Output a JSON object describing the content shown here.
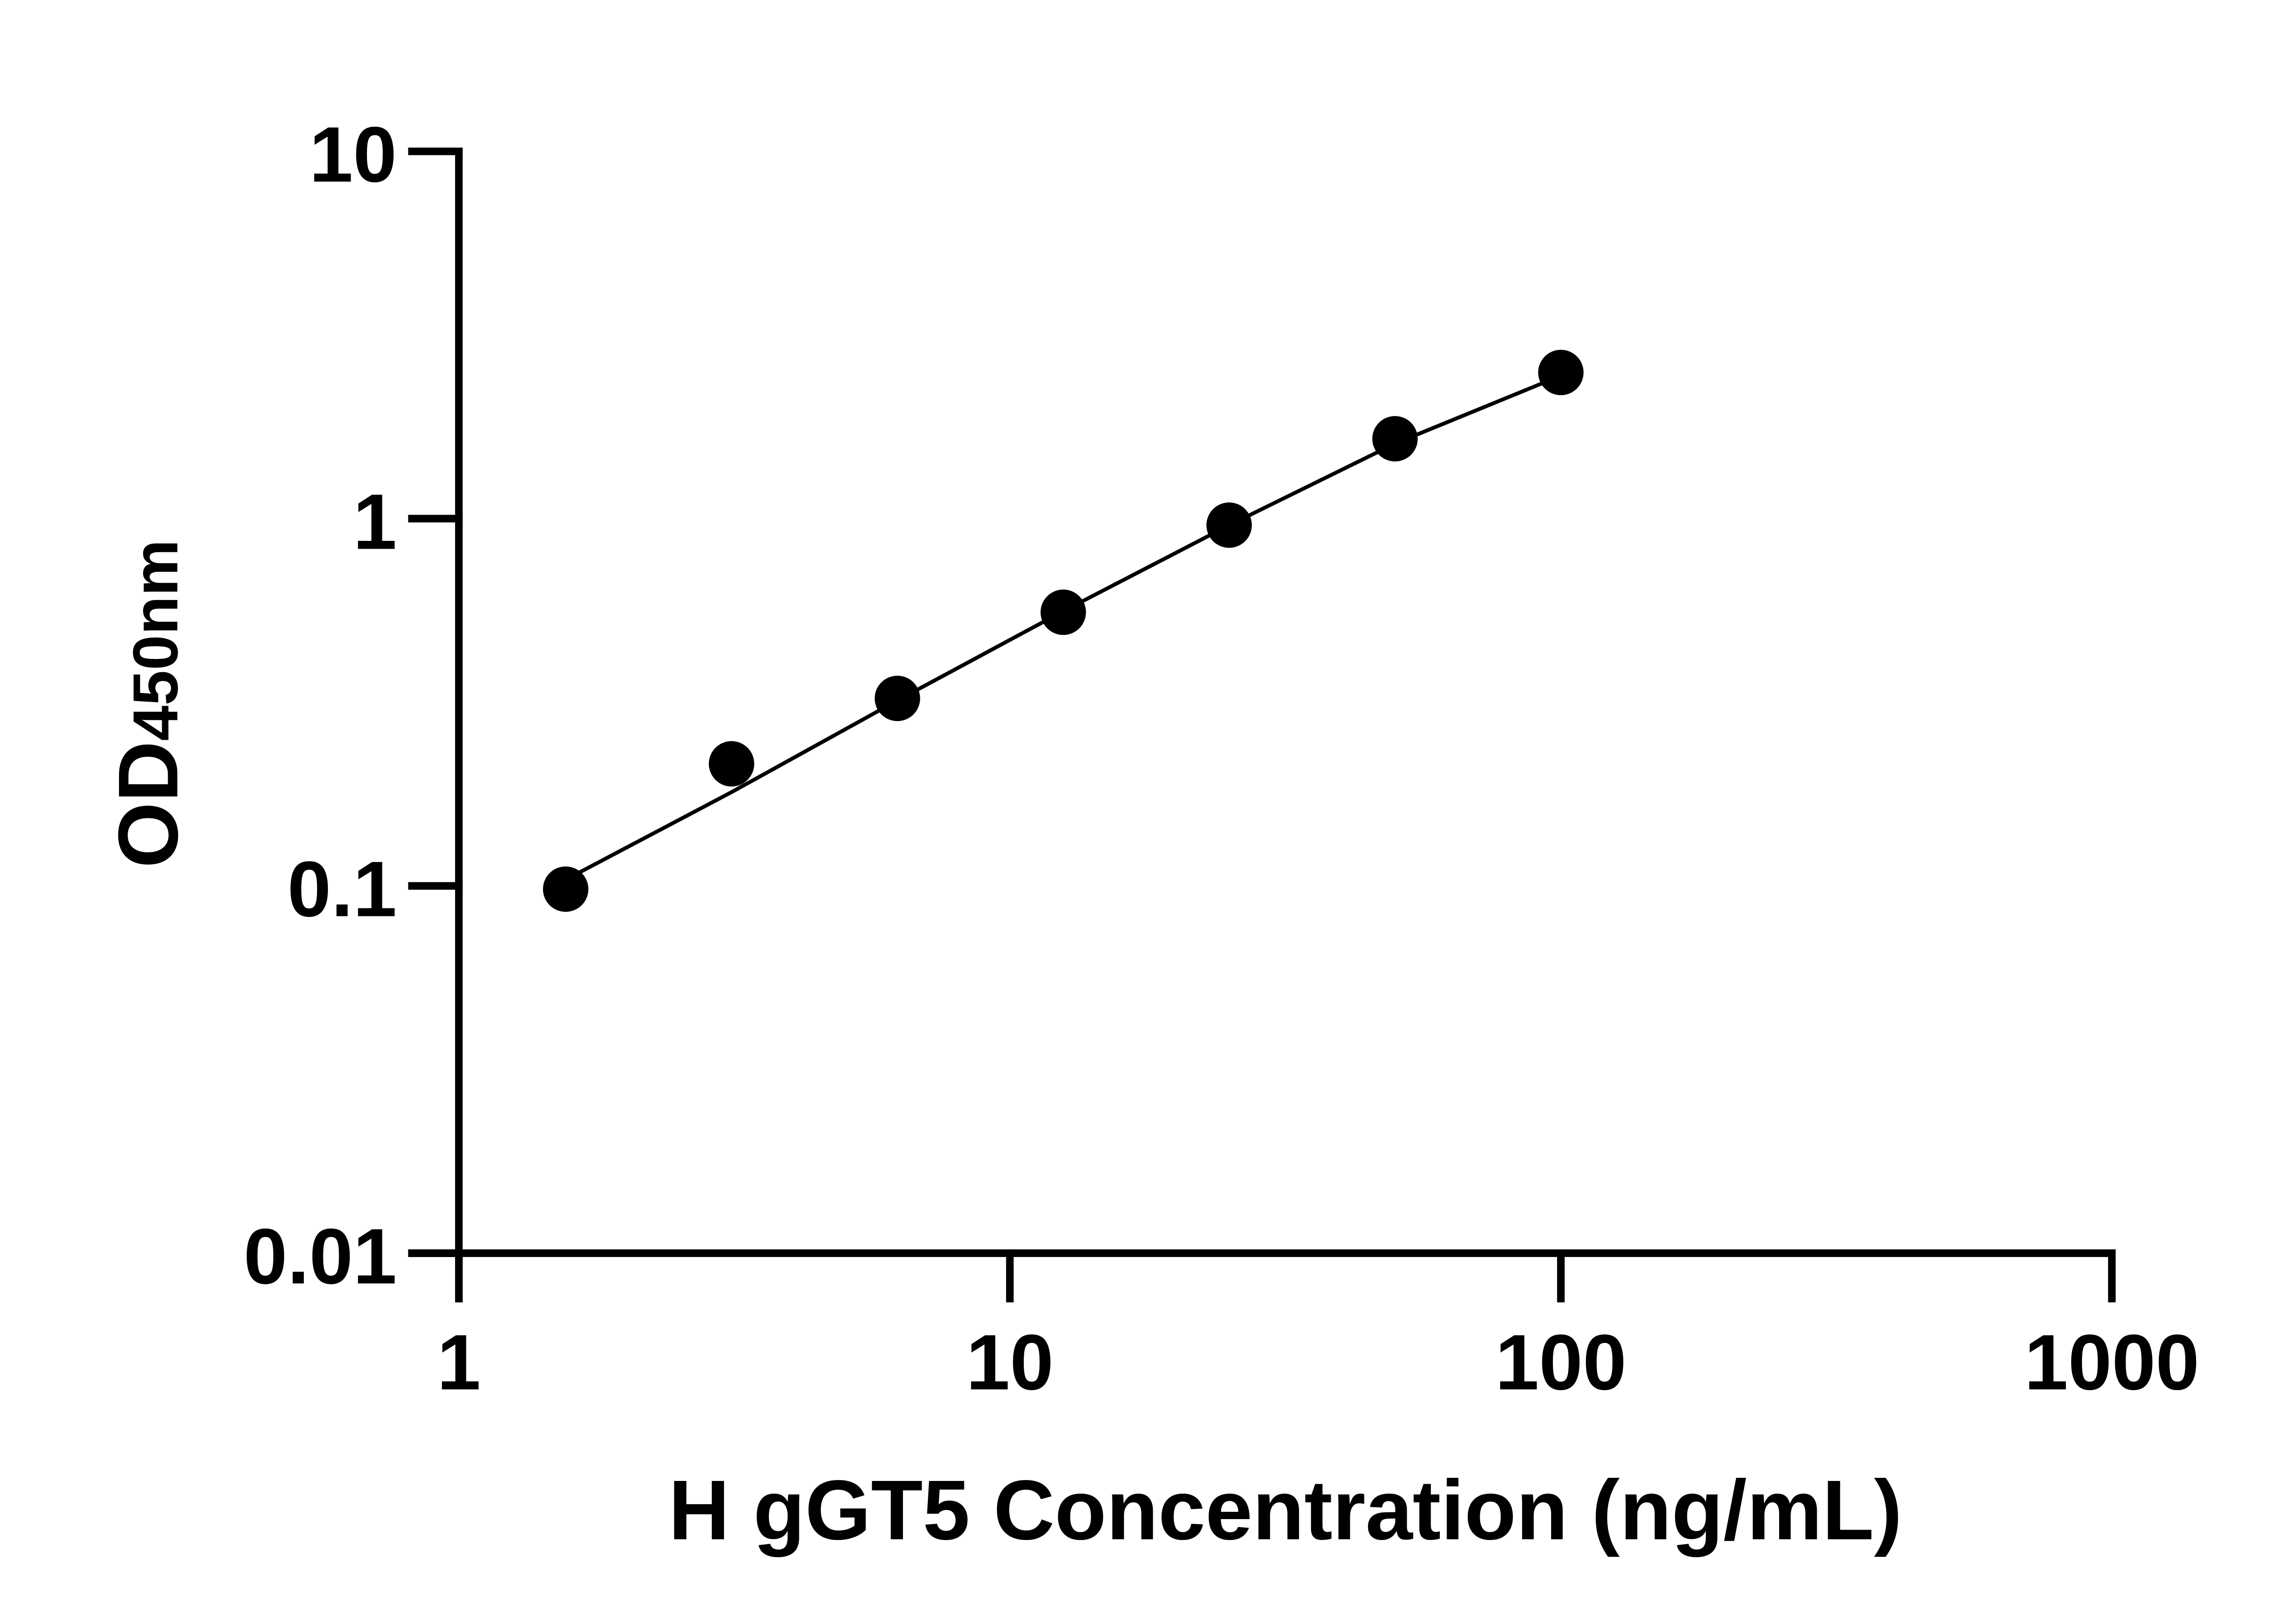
{
  "chart_data": {
    "type": "scatter",
    "title": "",
    "xlabel": "H gGT5 Concentration (ng/mL)",
    "ylabel_main": "OD",
    "ylabel_sub": "450nm",
    "x_scale": "log",
    "y_scale": "log",
    "xlim": [
      1,
      1000
    ],
    "ylim": [
      0.01,
      10
    ],
    "x_ticks": [
      "1",
      "10",
      "100",
      "1000"
    ],
    "y_ticks": [
      "0.01",
      "0.1",
      "1",
      "10"
    ],
    "grid": false,
    "marker_color": "#000000",
    "points": [
      {
        "x": 1.5625,
        "y": 0.098
      },
      {
        "x": 3.125,
        "y": 0.215
      },
      {
        "x": 6.25,
        "y": 0.324
      },
      {
        "x": 12.5,
        "y": 0.556
      },
      {
        "x": 25,
        "y": 0.96
      },
      {
        "x": 50,
        "y": 1.65
      },
      {
        "x": 100,
        "y": 2.5
      }
    ],
    "fit_curve": [
      {
        "x": 1.5625,
        "y": 0.104
      },
      {
        "x": 3.125,
        "y": 0.18
      },
      {
        "x": 6.25,
        "y": 0.32
      },
      {
        "x": 12.5,
        "y": 0.56
      },
      {
        "x": 25,
        "y": 0.96
      },
      {
        "x": 50,
        "y": 1.6
      },
      {
        "x": 100,
        "y": 2.45
      }
    ]
  }
}
